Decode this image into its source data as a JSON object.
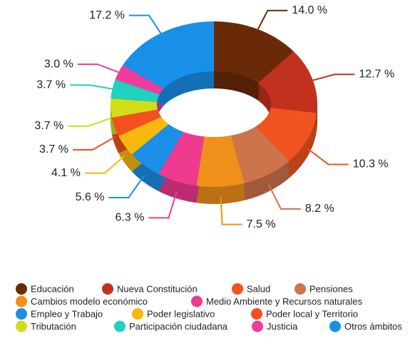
{
  "chart_data": {
    "type": "donut3d",
    "categories": [
      "Educación",
      "Nueva Constitución",
      "Salud",
      "Pensiones",
      "Cambios modelo económico",
      "Medio Ambiente y Recursos naturales",
      "Empleo y Trabajo",
      "Poder legislativo",
      "Poder local y Territorio",
      "Tributación",
      "Participación ciudadana",
      "Justicia",
      "Otros ámbitos"
    ],
    "values": [
      14.0,
      12.7,
      10.3,
      8.2,
      7.5,
      6.3,
      5.6,
      4.1,
      3.7,
      3.7,
      3.7,
      3.0,
      17.2
    ],
    "value_labels": [
      "14.0 %",
      "12.7 %",
      "10.3 %",
      "8.2 %",
      "7.5 %",
      "6.3 %",
      "5.6 %",
      "4.1 %",
      "3.7 %",
      "3.7 %",
      "3.7 %",
      "3.0 %",
      "17.2 %"
    ],
    "colors": [
      "#6b2a07",
      "#c0311e",
      "#f0531f",
      "#cd744a",
      "#f0901c",
      "#ef3a8f",
      "#1b8fe6",
      "#f8b80d",
      "#f3501e",
      "#d2dd16",
      "#1fd2c0",
      "#ee3c9c",
      "#1890ea"
    ]
  }
}
